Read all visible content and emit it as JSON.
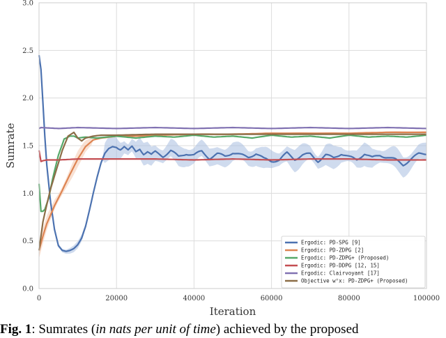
{
  "chart_data": {
    "type": "line",
    "xlabel": "Iteration",
    "ylabel": "Sumrate",
    "xlim": [
      0,
      100000
    ],
    "ylim": [
      0.0,
      3.0
    ],
    "xticks": [
      0,
      20000,
      40000,
      60000,
      80000,
      100000
    ],
    "yticks": [
      0.0,
      0.5,
      1.0,
      1.5,
      2.0,
      2.5,
      3.0
    ],
    "grid": true,
    "legend_position": "bottom-right",
    "series": [
      {
        "name": "Ergodic: PD-SPG [9]",
        "color": "#4c72b0",
        "band": true,
        "band_color": "#a8bde0",
        "x": [
          0,
          500,
          1000,
          1500,
          2000,
          3000,
          4000,
          5000,
          6000,
          7000,
          8000,
          9000,
          10000,
          11000,
          12000,
          13000,
          14000,
          15000,
          16000,
          17000,
          18000,
          19000,
          20000,
          21000,
          22000,
          23000,
          24000,
          25000,
          26000,
          27000,
          28000,
          29000,
          30000,
          32000,
          34000,
          36000,
          38000,
          40000,
          42000,
          44000,
          46000,
          48000,
          50000,
          52000,
          54000,
          56000,
          58000,
          60000,
          62000,
          64000,
          66000,
          68000,
          70000,
          72000,
          74000,
          76000,
          78000,
          80000,
          82000,
          84000,
          86000,
          88000,
          90000,
          92000,
          94000,
          96000,
          98000,
          100000
        ],
        "y": [
          2.45,
          2.3,
          1.95,
          1.6,
          1.3,
          0.9,
          0.62,
          0.45,
          0.4,
          0.39,
          0.4,
          0.42,
          0.46,
          0.53,
          0.65,
          0.82,
          1.0,
          1.17,
          1.32,
          1.42,
          1.47,
          1.49,
          1.48,
          1.47,
          1.5,
          1.45,
          1.48,
          1.43,
          1.47,
          1.42,
          1.44,
          1.4,
          1.43,
          1.39,
          1.45,
          1.38,
          1.42,
          1.4,
          1.44,
          1.37,
          1.41,
          1.39,
          1.43,
          1.4,
          1.38,
          1.42,
          1.36,
          1.34,
          1.35,
          1.42,
          1.36,
          1.4,
          1.41,
          1.34,
          1.4,
          1.37,
          1.42,
          1.38,
          1.35,
          1.42,
          1.37,
          1.4,
          1.38,
          1.35,
          1.3,
          1.36,
          1.41,
          1.42
        ]
      },
      {
        "name": "Ergodic: PD-ZDPG [2]",
        "color": "#dd8452",
        "band": true,
        "band_color": "#f4c9ae",
        "x": [
          0,
          1000,
          2000,
          4000,
          6000,
          8000,
          10000,
          12000,
          14000,
          16000,
          18000,
          20000,
          25000,
          30000,
          40000,
          50000,
          60000,
          70000,
          80000,
          90000,
          100000
        ],
        "y": [
          0.4,
          0.55,
          0.68,
          0.87,
          1.03,
          1.2,
          1.36,
          1.49,
          1.56,
          1.58,
          1.59,
          1.6,
          1.6,
          1.61,
          1.62,
          1.62,
          1.63,
          1.63,
          1.63,
          1.64,
          1.64
        ]
      },
      {
        "name": "Ergodic: PD-ZDPG+ (Proposed)",
        "color": "#55a868",
        "band": false,
        "x": [
          0,
          300,
          700,
          1500,
          2500,
          3500,
          5000,
          6500,
          8000,
          9000,
          10000,
          12000,
          15000,
          20000,
          25000,
          30000,
          35000,
          40000,
          45000,
          50000,
          55000,
          60000,
          65000,
          70000,
          75000,
          80000,
          85000,
          90000,
          95000,
          100000
        ],
        "y": [
          1.1,
          0.82,
          0.8,
          0.83,
          0.95,
          1.15,
          1.4,
          1.57,
          1.6,
          1.6,
          1.58,
          1.59,
          1.58,
          1.6,
          1.58,
          1.6,
          1.59,
          1.61,
          1.59,
          1.6,
          1.58,
          1.61,
          1.59,
          1.6,
          1.58,
          1.61,
          1.59,
          1.6,
          1.59,
          1.61
        ]
      },
      {
        "name": "Ergodic: PD-DDPG [12, 15]",
        "color": "#c44e52",
        "band": false,
        "x": [
          0,
          300,
          800,
          2000,
          5000,
          10000,
          20000,
          30000,
          40000,
          50000,
          60000,
          70000,
          80000,
          90000,
          100000
        ],
        "y": [
          1.45,
          1.33,
          1.34,
          1.35,
          1.35,
          1.36,
          1.36,
          1.36,
          1.35,
          1.36,
          1.35,
          1.36,
          1.36,
          1.35,
          1.35
        ]
      },
      {
        "name": "Ergodic: Clairvoyant [17]",
        "color": "#8172b2",
        "band": false,
        "x": [
          0,
          500,
          5000,
          10000,
          20000,
          30000,
          40000,
          50000,
          60000,
          70000,
          80000,
          90000,
          100000
        ],
        "y": [
          1.68,
          1.69,
          1.68,
          1.69,
          1.68,
          1.69,
          1.68,
          1.69,
          1.68,
          1.69,
          1.68,
          1.69,
          1.68
        ]
      },
      {
        "name": "Objective wᵀx: PD-ZDPG+ (Proposed)",
        "color": "#8c6d47",
        "band": false,
        "x": [
          0,
          1000,
          2000,
          3000,
          4500,
          6000,
          7500,
          9000,
          10000,
          11000,
          12000,
          14000,
          16000,
          20000,
          30000,
          40000,
          50000,
          60000,
          70000,
          80000,
          90000,
          100000
        ],
        "y": [
          0.4,
          0.7,
          0.88,
          1.05,
          1.25,
          1.45,
          1.6,
          1.64,
          1.58,
          1.55,
          1.58,
          1.6,
          1.61,
          1.61,
          1.62,
          1.62,
          1.62,
          1.62,
          1.62,
          1.62,
          1.62,
          1.62
        ]
      }
    ]
  },
  "caption": {
    "label": "Fig. 1",
    "sep": ": Sumrates (",
    "italic": "in nats per unit of time",
    "rest": ") achieved by the proposed"
  }
}
